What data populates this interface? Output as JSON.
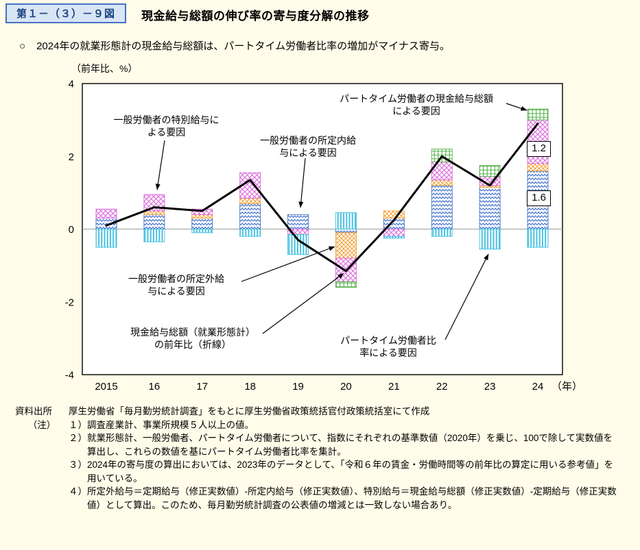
{
  "header": {
    "figure_number": "第１－（３）－９図",
    "title": "現金給与総額の伸び率の寄与度分解の推移"
  },
  "lead": {
    "bullet": "○",
    "text": "2024年の就業形態計の現金給与総額は、パートタイム労働者比率の増加がマイナス寄与。"
  },
  "chart_data": {
    "type": "bar",
    "stacked": true,
    "title": "現金給与総額の伸び率の寄与度分解の推移",
    "ylabel": "（前年比、%）",
    "x_axis_suffix": "（年）",
    "ylim": [
      -4,
      4
    ],
    "yticks": [
      4,
      2,
      0,
      -2,
      -4
    ],
    "grid": "zero-line-only",
    "legend_position": "in-chart-annotations",
    "categories": [
      "2015",
      "16",
      "17",
      "18",
      "19",
      "20",
      "21",
      "22",
      "23",
      "24"
    ],
    "series": [
      {
        "name": "一般労働者の所定内給与による要因",
        "pattern": "wave",
        "color": "#4070CC",
        "values": [
          0.3,
          0.4,
          0.3,
          0.7,
          0.4,
          -0.1,
          0.3,
          1.2,
          1.15,
          1.6
        ]
      },
      {
        "name": "一般労働者の所定外給与による要因",
        "pattern": "check",
        "color": "#F2A33C",
        "values": [
          0,
          0.1,
          0.1,
          0.15,
          0,
          -0.7,
          0.2,
          0.15,
          0.05,
          0.2
        ]
      },
      {
        "name": "一般労働者の特別給与による要因",
        "pattern": "crosshatch",
        "color": "#DB66DB",
        "values": [
          0.25,
          0.45,
          0.15,
          0.7,
          -0.15,
          -0.65,
          -0.2,
          0.5,
          0.25,
          1.2
        ]
      },
      {
        "name": "パートタイム労働者の現金給与総額による要因",
        "pattern": "grid",
        "color": "#55B14A",
        "values": [
          0,
          0,
          0,
          0,
          0,
          -0.15,
          0,
          0.35,
          0.3,
          0.3
        ]
      },
      {
        "name": "パートタイム労働者比率による要因",
        "pattern": "vstripe",
        "color": "#3FBFE0",
        "values": [
          -0.5,
          -0.35,
          -0.1,
          -0.2,
          -0.55,
          0.45,
          -0.05,
          -0.2,
          -0.55,
          -0.5
        ]
      }
    ],
    "line": {
      "name": "現金給与総額（就業形態計）の前年比（折線）",
      "color": "#000000",
      "values": [
        0.1,
        0.6,
        0.5,
        1.35,
        -0.3,
        -1.15,
        0.25,
        2.0,
        1.2,
        2.9
      ]
    },
    "value_labels": [
      {
        "text": "1.2"
      },
      {
        "text": "1.6"
      }
    ]
  },
  "annotations": [
    {
      "lines": [
        "一般労働者の特別給与に",
        "よる要因"
      ]
    },
    {
      "lines": [
        "一般労働者の所定内給",
        "与による要因"
      ]
    },
    {
      "lines": [
        "パートタイム労働者の現金給与総額",
        "による要因"
      ]
    },
    {
      "lines": [
        "一般労働者の所定外給",
        "与による要因"
      ]
    },
    {
      "lines": [
        "現金給与総額（就業形態計）",
        "の前年比（折線）"
      ]
    },
    {
      "lines": [
        "パートタイム労働者比",
        "率による要因"
      ]
    }
  ],
  "footer": {
    "source_label": "資料出所",
    "source_text": "厚生労働省「毎月勤労統計調査」をもとに厚生労働省政策統括官付政策統括室にて作成",
    "note_label": "（注）",
    "notes": [
      "１）調査産業計、事業所規模５人以上の値。",
      "２）就業形態計、一般労働者、パートタイム労働者について、指数にそれぞれの基準数値（2020年）を乗じ、100で除して実数値を算出し、これらの数値を基にパートタイム労働者比率を集計。",
      "３）2024年の寄与度の算出においては、2023年のデータとして、「令和６年の賃金・労働時間等の前年比の算定に用いる参考値」を用いている。",
      "４）所定外給与＝定期給与（修正実数値）-所定内給与（修正実数値）、特別給与＝現金給与総額（修正実数値）-定期給与（修正実数値）として算出。このため、毎月勤労統計調査の公表値の増減とは一致しない場合あり。"
    ]
  },
  "colors": {
    "page_background": "#FFFDE9",
    "figure_box_border": "#4571C4",
    "figure_box_bg": "#D8E5F5",
    "zero_line": "#9B9B9B"
  }
}
